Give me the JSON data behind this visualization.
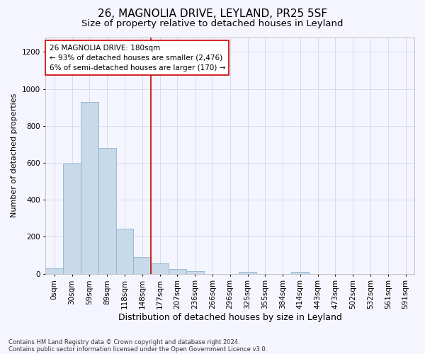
{
  "title1": "26, MAGNOLIA DRIVE, LEYLAND, PR25 5SF",
  "title2": "Size of property relative to detached houses in Leyland",
  "xlabel": "Distribution of detached houses by size in Leyland",
  "ylabel": "Number of detached properties",
  "footnote1": "Contains HM Land Registry data © Crown copyright and database right 2024.",
  "footnote2": "Contains public sector information licensed under the Open Government Licence v3.0.",
  "bar_labels": [
    "0sqm",
    "30sqm",
    "59sqm",
    "89sqm",
    "118sqm",
    "148sqm",
    "177sqm",
    "207sqm",
    "236sqm",
    "266sqm",
    "296sqm",
    "325sqm",
    "355sqm",
    "384sqm",
    "414sqm",
    "443sqm",
    "473sqm",
    "502sqm",
    "532sqm",
    "561sqm",
    "591sqm"
  ],
  "bar_values": [
    30,
    595,
    930,
    680,
    245,
    90,
    55,
    25,
    15,
    0,
    0,
    10,
    0,
    0,
    10,
    0,
    0,
    0,
    0,
    0,
    0
  ],
  "bar_color": "#c8d9ea",
  "bar_edge_color": "#8ab4d0",
  "vline_color": "#cc0000",
  "annotation_text": "26 MAGNOLIA DRIVE: 180sqm\n← 93% of detached houses are smaller (2,476)\n6% of semi-detached houses are larger (170) →",
  "annotation_box_color": "#cc0000",
  "ylim": [
    0,
    1280
  ],
  "yticks": [
    0,
    200,
    400,
    600,
    800,
    1000,
    1200
  ],
  "background_color": "#f5f5ff",
  "grid_color": "#d0d8e8",
  "title1_fontsize": 11,
  "title2_fontsize": 9.5,
  "xlabel_fontsize": 9,
  "ylabel_fontsize": 8,
  "tick_fontsize": 7.5,
  "annot_fontsize": 7.5,
  "footnote_fontsize": 6
}
